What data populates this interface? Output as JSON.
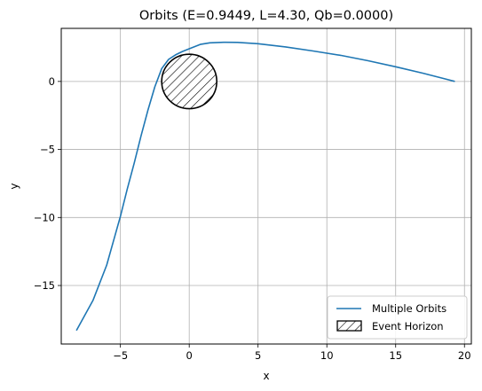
{
  "chart_data": {
    "type": "line",
    "title": "Orbits (E=0.9449, L=4.30, Qb=0.0000)",
    "xlabel": "x",
    "ylabel": "y",
    "xlim": [
      -9.3,
      20.5
    ],
    "ylim": [
      -19.3,
      3.9
    ],
    "xticks": [
      -5,
      0,
      5,
      10,
      15,
      20
    ],
    "yticks": [
      -15,
      -10,
      -5,
      0
    ],
    "xtick_labels": [
      "−5",
      "0",
      "5",
      "10",
      "15",
      "20"
    ],
    "ytick_labels": [
      "−15",
      "−10",
      "−5",
      "0"
    ],
    "grid": true,
    "legend_position": "lower-right",
    "series": [
      {
        "name": "Multiple Orbits",
        "color": "#1f77b4",
        "x": [
          19.3,
          17.0,
          15.0,
          13.0,
          11.0,
          9.0,
          7.0,
          5.0,
          3.5,
          2.5,
          1.5,
          0.8,
          0.0,
          -0.5,
          -1.0,
          -1.5,
          -2.0,
          -2.5,
          -3.0,
          -3.5,
          -4.0,
          -4.5,
          -5.0,
          -6.0,
          -7.0,
          -8.2
        ],
        "y": [
          0.0,
          0.6,
          1.08,
          1.52,
          1.92,
          2.24,
          2.54,
          2.77,
          2.87,
          2.88,
          2.84,
          2.72,
          2.4,
          2.2,
          1.95,
          1.62,
          0.95,
          -0.4,
          -2.1,
          -4.0,
          -6.0,
          -7.9,
          -9.9,
          -13.5,
          -16.1,
          -18.3
        ]
      }
    ],
    "annotations": [
      {
        "name": "Event Horizon",
        "shape": "circle",
        "center": [
          0,
          0
        ],
        "radius": 2.0,
        "fill": "hatched"
      }
    ]
  }
}
